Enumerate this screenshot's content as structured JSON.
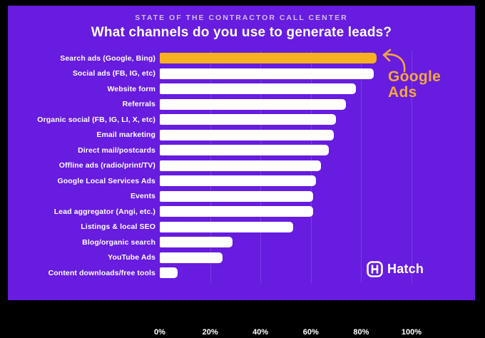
{
  "frame": {
    "background_color": "#000000",
    "card_color": "#671CDF"
  },
  "header": {
    "eyebrow": "STATE OF THE CONTRACTOR CALL CENTER",
    "title": "What channels do you use to generate leads?"
  },
  "chart_data": {
    "type": "bar",
    "orientation": "horizontal",
    "title": "What channels do you use to generate leads?",
    "categories": [
      "Search ads (Google, Bing)",
      "Social ads (FB, IG, etc)",
      "Website form",
      "Referrals",
      "Organic social (FB, IG, LI, X, etc)",
      "Email marketing",
      "Direct mail/postcards",
      "Offline ads (radio/print/TV)",
      "Google Local Services Ads",
      "Events",
      "Lead aggregator (Angi, etc.)",
      "Listings & local SEO",
      "Blog/organic search",
      "YouTube Ads",
      "Content downloads/free tools"
    ],
    "values": [
      86,
      85,
      78,
      74,
      70,
      69,
      67,
      64,
      62,
      61,
      61,
      53,
      29,
      25,
      7
    ],
    "x_ticks": [
      "0%",
      "20%",
      "40%",
      "60%",
      "80%",
      "100%"
    ],
    "xlim": [
      0,
      100
    ],
    "grid": true,
    "bar_color": "#FFFFFF",
    "highlight_index": 0,
    "highlight_color": "#F7B11E"
  },
  "annotation": {
    "line1": "Google",
    "line2": "Ads",
    "color": "#F2A93C",
    "arrow": "curved-arrow-pointing-to-top-bar"
  },
  "logo": {
    "text": "Hatch"
  }
}
